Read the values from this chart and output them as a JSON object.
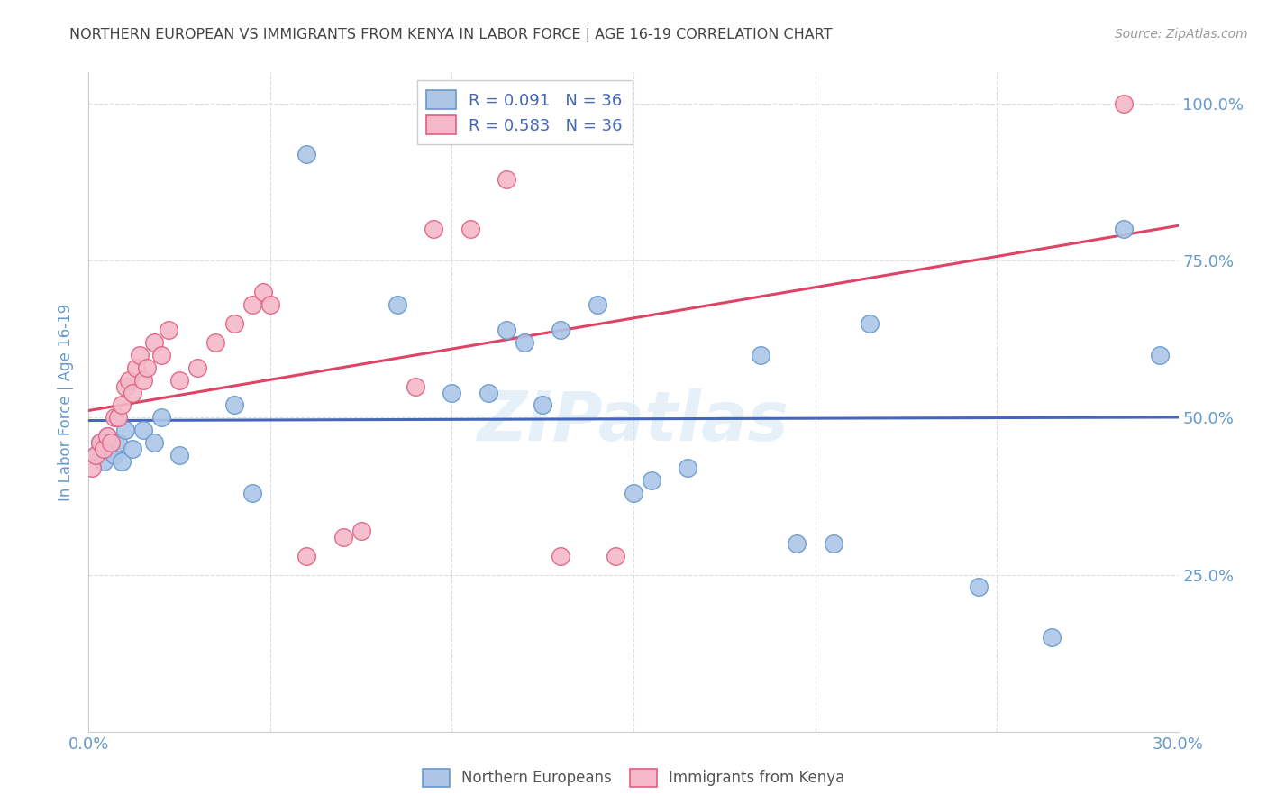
{
  "title": "NORTHERN EUROPEAN VS IMMIGRANTS FROM KENYA IN LABOR FORCE | AGE 16-19 CORRELATION CHART",
  "source": "Source: ZipAtlas.com",
  "ylabel": "In Labor Force | Age 16-19",
  "xlim": [
    0.0,
    0.3
  ],
  "ylim": [
    0.0,
    1.05
  ],
  "xticks": [
    0.0,
    0.05,
    0.1,
    0.15,
    0.2,
    0.25,
    0.3
  ],
  "xticklabels": [
    "0.0%",
    "",
    "",
    "",
    "",
    "",
    "30.0%"
  ],
  "yticks": [
    0.0,
    0.25,
    0.5,
    0.75,
    1.0
  ],
  "yticklabels": [
    "",
    "25.0%",
    "50.0%",
    "75.0%",
    "100.0%"
  ],
  "blue_fill": "#adc6e8",
  "blue_edge": "#6699cc",
  "pink_fill": "#f5b8c8",
  "pink_edge": "#e06080",
  "blue_line_color": "#4466bb",
  "pink_line_color": "#dd4466",
  "legend_blue_R": "R = 0.091",
  "legend_blue_N": "N = 36",
  "legend_pink_R": "R = 0.583",
  "legend_pink_N": "N = 36",
  "watermark": "ZIPatlas",
  "blue_scatter_x": [
    0.002,
    0.003,
    0.004,
    0.005,
    0.006,
    0.007,
    0.008,
    0.009,
    0.01,
    0.012,
    0.015,
    0.018,
    0.02,
    0.025,
    0.04,
    0.045,
    0.06,
    0.085,
    0.1,
    0.11,
    0.115,
    0.12,
    0.125,
    0.13,
    0.14,
    0.15,
    0.155,
    0.165,
    0.185,
    0.195,
    0.205,
    0.215,
    0.245,
    0.265,
    0.285,
    0.295
  ],
  "blue_scatter_y": [
    0.44,
    0.46,
    0.43,
    0.47,
    0.45,
    0.44,
    0.46,
    0.43,
    0.48,
    0.45,
    0.48,
    0.46,
    0.5,
    0.44,
    0.52,
    0.38,
    0.92,
    0.68,
    0.54,
    0.54,
    0.64,
    0.62,
    0.52,
    0.64,
    0.68,
    0.38,
    0.4,
    0.42,
    0.6,
    0.3,
    0.3,
    0.65,
    0.23,
    0.15,
    0.8,
    0.6
  ],
  "pink_scatter_x": [
    0.001,
    0.002,
    0.003,
    0.004,
    0.005,
    0.006,
    0.007,
    0.008,
    0.009,
    0.01,
    0.011,
    0.012,
    0.013,
    0.014,
    0.015,
    0.016,
    0.018,
    0.02,
    0.022,
    0.025,
    0.03,
    0.035,
    0.04,
    0.045,
    0.048,
    0.05,
    0.06,
    0.07,
    0.075,
    0.09,
    0.095,
    0.105,
    0.115,
    0.13,
    0.145,
    0.285
  ],
  "pink_scatter_y": [
    0.42,
    0.44,
    0.46,
    0.45,
    0.47,
    0.46,
    0.5,
    0.5,
    0.52,
    0.55,
    0.56,
    0.54,
    0.58,
    0.6,
    0.56,
    0.58,
    0.62,
    0.6,
    0.64,
    0.56,
    0.58,
    0.62,
    0.65,
    0.68,
    0.7,
    0.68,
    0.28,
    0.31,
    0.32,
    0.55,
    0.8,
    0.8,
    0.88,
    0.28,
    0.28,
    1.0
  ],
  "grid_color": "#dddddd",
  "background_color": "#ffffff",
  "title_color": "#444444",
  "axis_label_color": "#6699cc",
  "tick_color": "#6699cc"
}
